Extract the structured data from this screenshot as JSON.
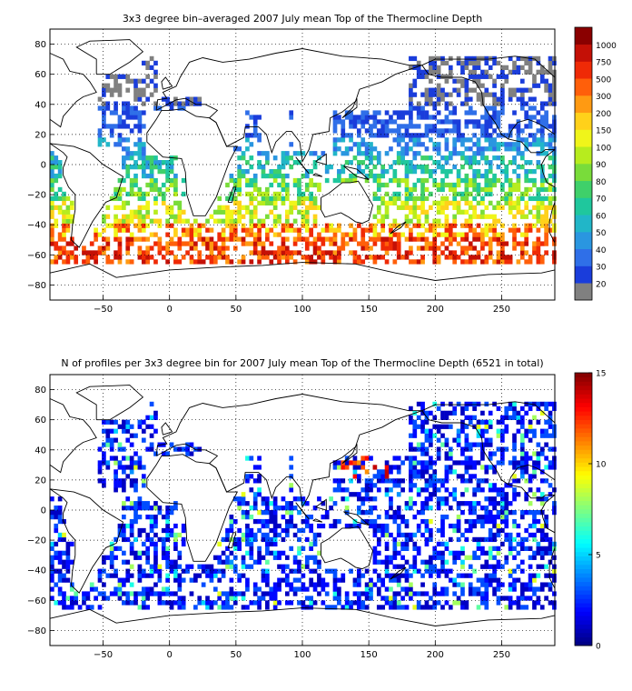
{
  "panels": [
    {
      "title": "3x3 degree bin–averaged 2007 July mean Top of the Thermocline Depth",
      "colorbar": {
        "labels": [
          "20",
          "30",
          "40",
          "50",
          "60",
          "70",
          "80",
          "90",
          "100",
          "150",
          "200",
          "300",
          "500",
          "750",
          "1000"
        ],
        "colors": [
          "#808080",
          "#1a3ddb",
          "#2f6fe8",
          "#2a96e0",
          "#21b6c8",
          "#1fc79d",
          "#3fd06a",
          "#79dc3a",
          "#b7ec1e",
          "#f0f51a",
          "#ffd11a",
          "#ff9a12",
          "#ff5f0a",
          "#ef2a06",
          "#c41006",
          "#8a0000"
        ]
      }
    },
    {
      "title": "N of profiles per 3x3 degree bin for 2007 July mean Top of the Thermocline Depth  (6521 in total)",
      "colorbar": {
        "labels": [
          "0",
          "5",
          "10",
          "15"
        ],
        "min": 0,
        "max": 15
      }
    }
  ],
  "chart_data": [
    {
      "type": "heatmap",
      "title": "3x3 degree bin–averaged 2007 July mean Top of the Thermocline Depth",
      "xlabel": "",
      "ylabel": "",
      "xlim": [
        -90,
        290
      ],
      "ylim": [
        -90,
        90
      ],
      "xticks": [
        -50,
        0,
        50,
        100,
        150,
        200,
        250
      ],
      "yticks": [
        80,
        60,
        40,
        20,
        0,
        -20,
        -40,
        -60,
        -80
      ],
      "grid": true,
      "legend": "colorbar-right",
      "bin_size_deg": 3,
      "colorbar_ticks": [
        20,
        30,
        40,
        50,
        60,
        70,
        80,
        90,
        100,
        150,
        200,
        300,
        500,
        750,
        1000
      ],
      "zonal_pattern": [
        {
          "lat_band": [
            40,
            80
          ],
          "typical_value": "<20"
        },
        {
          "lat_band": [
            15,
            40
          ],
          "typical_value": 30
        },
        {
          "lat_band": [
            -10,
            15
          ],
          "typical_value": 60
        },
        {
          "lat_band": [
            -35,
            -10
          ],
          "typical_value": 100
        },
        {
          "lat_band": [
            -50,
            -35
          ],
          "typical_value": 200
        },
        {
          "lat_band": [
            -65,
            -50
          ],
          "typical_value": 500
        }
      ]
    },
    {
      "type": "heatmap",
      "title": "N of profiles per 3x3 degree bin for 2007 July mean Top of the Thermocline Depth  (6521 in total)",
      "xlabel": "",
      "ylabel": "",
      "xlim": [
        -90,
        290
      ],
      "ylim": [
        -90,
        90
      ],
      "xticks": [
        -50,
        0,
        50,
        100,
        150,
        200,
        250
      ],
      "yticks": [
        80,
        60,
        40,
        20,
        0,
        -20,
        -40,
        -60,
        -80
      ],
      "grid": true,
      "legend": "colorbar-right",
      "bin_size_deg": 3,
      "total_profiles": 6521,
      "colorbar_range": [
        0,
        15
      ],
      "colorbar_ticks": [
        0,
        5,
        10,
        15
      ],
      "typical_count": 2,
      "max_count_region": {
        "lon": [
          135,
          160
        ],
        "lat": [
          25,
          40
        ],
        "count": 14
      }
    }
  ]
}
